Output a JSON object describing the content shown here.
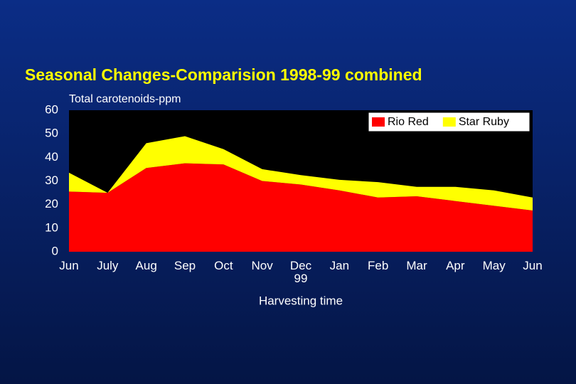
{
  "chart_data": {
    "type": "stacked_area",
    "title": "Seasonal Changes-Comparision 1998-99 combined",
    "y_label": "Total carotenoids-ppm",
    "x_label": "Harvesting time",
    "categories": [
      "Jun",
      "July",
      "Aug",
      "Sep",
      "Oct",
      "Nov",
      "Dec\n99",
      "Jan",
      "Feb",
      "Mar",
      "Apr",
      "May",
      "Jun"
    ],
    "series": [
      {
        "name": "Rio Red",
        "color": "#ff0000",
        "values": [
          25.5,
          25,
          35.5,
          37.5,
          37,
          30,
          28.5,
          26,
          23,
          23.5,
          21.5,
          19.5,
          17.5
        ]
      },
      {
        "name": "Star Ruby",
        "color": "#ffff00",
        "values": [
          8,
          0,
          10.5,
          11.5,
          6.5,
          5,
          4,
          4.5,
          6.5,
          4,
          6,
          6.5,
          5.5
        ]
      }
    ],
    "ylim": [
      0,
      60
    ],
    "yticks": [
      0,
      10,
      20,
      30,
      40,
      50,
      60
    ],
    "plot_background": "#000000",
    "legend": "top-right"
  }
}
